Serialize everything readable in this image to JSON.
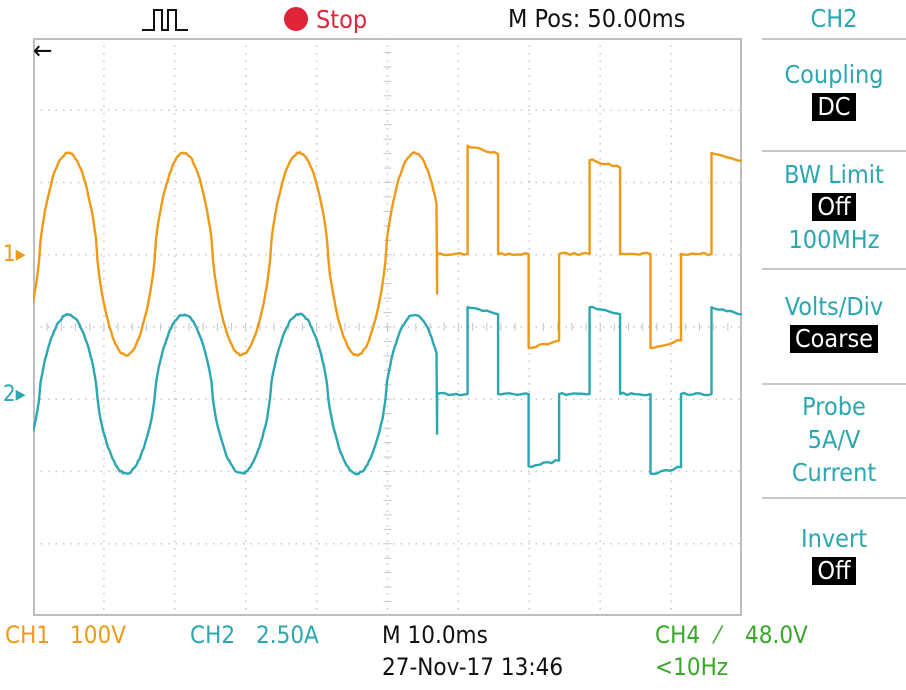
{
  "topbar": {
    "trigger_icon": "trigger-pulse-icon",
    "run_state": "Stop",
    "mpos": "M Pos: 50.00ms"
  },
  "markers": {
    "ch1": "1",
    "ch2": "2",
    "trigger_arrow": "left-arrow-icon"
  },
  "menu": {
    "header": "CH2",
    "coupling": {
      "label": "Coupling",
      "value": "DC"
    },
    "bw_limit": {
      "label": "BW Limit",
      "value": "Off",
      "extra": "100MHz"
    },
    "volts_div": {
      "label": "Volts/Div",
      "value": "Coarse"
    },
    "probe": {
      "label": "Probe",
      "line2": "5A/V",
      "line3": "Current"
    },
    "invert": {
      "label": "Invert",
      "value": "Off"
    }
  },
  "status": {
    "ch1_label": "CH1",
    "ch1_scale": "100V",
    "ch2_label": "CH2",
    "ch2_scale": "2.50A",
    "timebase": "M 10.0ms",
    "datetime": "27-Nov-17 13:46",
    "ch4_trigger": "CH4",
    "ch4_level": "48.0V",
    "frequency": "<10Hz"
  },
  "colors": {
    "ch1": "#ee9a16",
    "ch2": "#2aa7b0",
    "ch4": "#3aa827",
    "stop": "#e0243a"
  },
  "chart_data": {
    "type": "line",
    "x_divisions": 10,
    "y_divisions": 8,
    "series": [
      {
        "name": "CH1",
        "units": "V",
        "scale_per_div": 100,
        "description_segments": [
          {
            "x_div": [
              0,
              5.7
            ],
            "kind": "sine",
            "cycles": 3.5,
            "amplitude_div": 1.4,
            "offset_div": 0
          },
          {
            "x_div": [
              5.7,
              10
            ],
            "kind": "square-steps",
            "levels_div": [
              0,
              1.5,
              0,
              -1.3,
              0,
              1.3,
              0,
              -1.3,
              0,
              1.4
            ]
          }
        ]
      },
      {
        "name": "CH2",
        "units": "A",
        "scale_per_div": 2.5,
        "description_segments": [
          {
            "x_div": [
              0,
              5.7
            ],
            "kind": "sine",
            "cycles": 3.5,
            "amplitude_div": 1.1,
            "offset_div": 0
          },
          {
            "x_div": [
              5.7,
              10
            ],
            "kind": "square-steps",
            "levels_div": [
              0,
              1.2,
              0,
              -1.0,
              0,
              1.2,
              0,
              -1.1,
              0,
              1.2
            ]
          }
        ]
      }
    ]
  }
}
